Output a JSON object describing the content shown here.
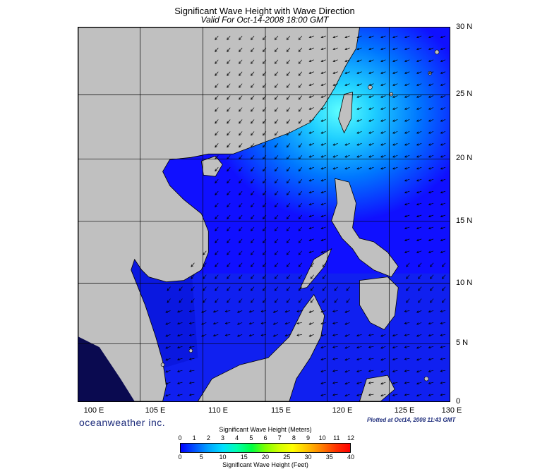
{
  "title": "Significant Wave Height with Wave Direction",
  "subtitle": "Valid For Oct-14-2008 18:00 GMT",
  "lat_labels": [
    "30 N",
    "25 N",
    "20 N",
    "15 N",
    "10 N",
    "5 N",
    "0"
  ],
  "lon_labels": [
    "100 E",
    "105 E",
    "110 E",
    "115 E",
    "120 E",
    "125 E",
    "130 E"
  ],
  "brand": "oceanweather inc.",
  "plotted": "Plotted at Oct14, 2008 11:43 GMT",
  "colorbar": {
    "title_meters": "Significant Wave Height (Meters)",
    "title_feet": "Significant Wave Height (Feet)",
    "meters_ticks": [
      "0",
      "1",
      "2",
      "3",
      "4",
      "5",
      "6",
      "7",
      "8",
      "9",
      "10",
      "11",
      "12"
    ],
    "feet_ticks": [
      "0",
      "5",
      "10",
      "15",
      "20",
      "25",
      "30",
      "35",
      "40"
    ]
  },
  "colors": {
    "land": "#c0c0c0",
    "ocean_low": "#0000ff",
    "ocean_high": "#00ffff"
  }
}
